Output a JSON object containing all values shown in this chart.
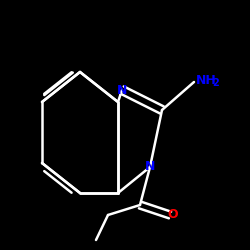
{
  "background_color": "#000000",
  "bond_color": "#ffffff",
  "text_color_N": "#0000ff",
  "text_color_O": "#ff0000",
  "bond_width": 1.8,
  "label_N": "N",
  "label_NH2": "NH2",
  "label_O": "O",
  "figsize": [
    2.5,
    2.5
  ],
  "dpi": 100
}
